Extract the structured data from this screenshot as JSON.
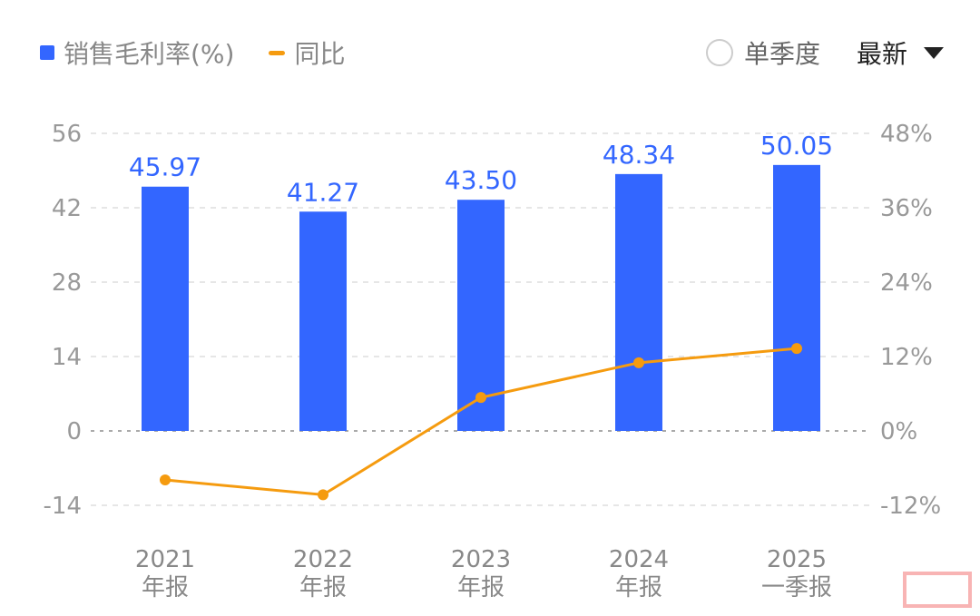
{
  "legend": {
    "bar_label": "销售毛利率(%)",
    "line_label": "同比"
  },
  "controls": {
    "radio_label": "单季度",
    "dropdown_label": "最新"
  },
  "colors": {
    "bar": "#3366ff",
    "line": "#f59b0f",
    "label": "#3366ff",
    "axis": "#999999"
  },
  "chart_data": {
    "type": "bar",
    "categories": [
      [
        "2021",
        "年报"
      ],
      [
        "2022",
        "年报"
      ],
      [
        "2023",
        "年报"
      ],
      [
        "2024",
        "年报"
      ],
      [
        "2025",
        "一季报"
      ]
    ],
    "series": [
      {
        "name": "销售毛利率(%)",
        "type": "bar",
        "axis": "left",
        "values": [
          45.97,
          41.27,
          43.5,
          48.34,
          50.05
        ],
        "labels": [
          "45.97",
          "41.27",
          "43.50",
          "48.34",
          "50.05"
        ]
      },
      {
        "name": "同比",
        "type": "line",
        "axis": "right",
        "values": [
          -7.9,
          -10.3,
          5.4,
          11.0,
          13.3
        ]
      }
    ],
    "left_axis": {
      "ticks": [
        56,
        42,
        28,
        14,
        0,
        -14
      ],
      "tick_labels": [
        "56",
        "42",
        "28",
        "14",
        "0",
        "-14"
      ],
      "range": [
        -14,
        56
      ]
    },
    "right_axis": {
      "ticks": [
        48,
        36,
        24,
        12,
        0,
        -12
      ],
      "tick_labels": [
        "48%",
        "36%",
        "24%",
        "12%",
        "0%",
        "-12%"
      ],
      "range": [
        -12,
        48
      ]
    },
    "grid": true
  }
}
